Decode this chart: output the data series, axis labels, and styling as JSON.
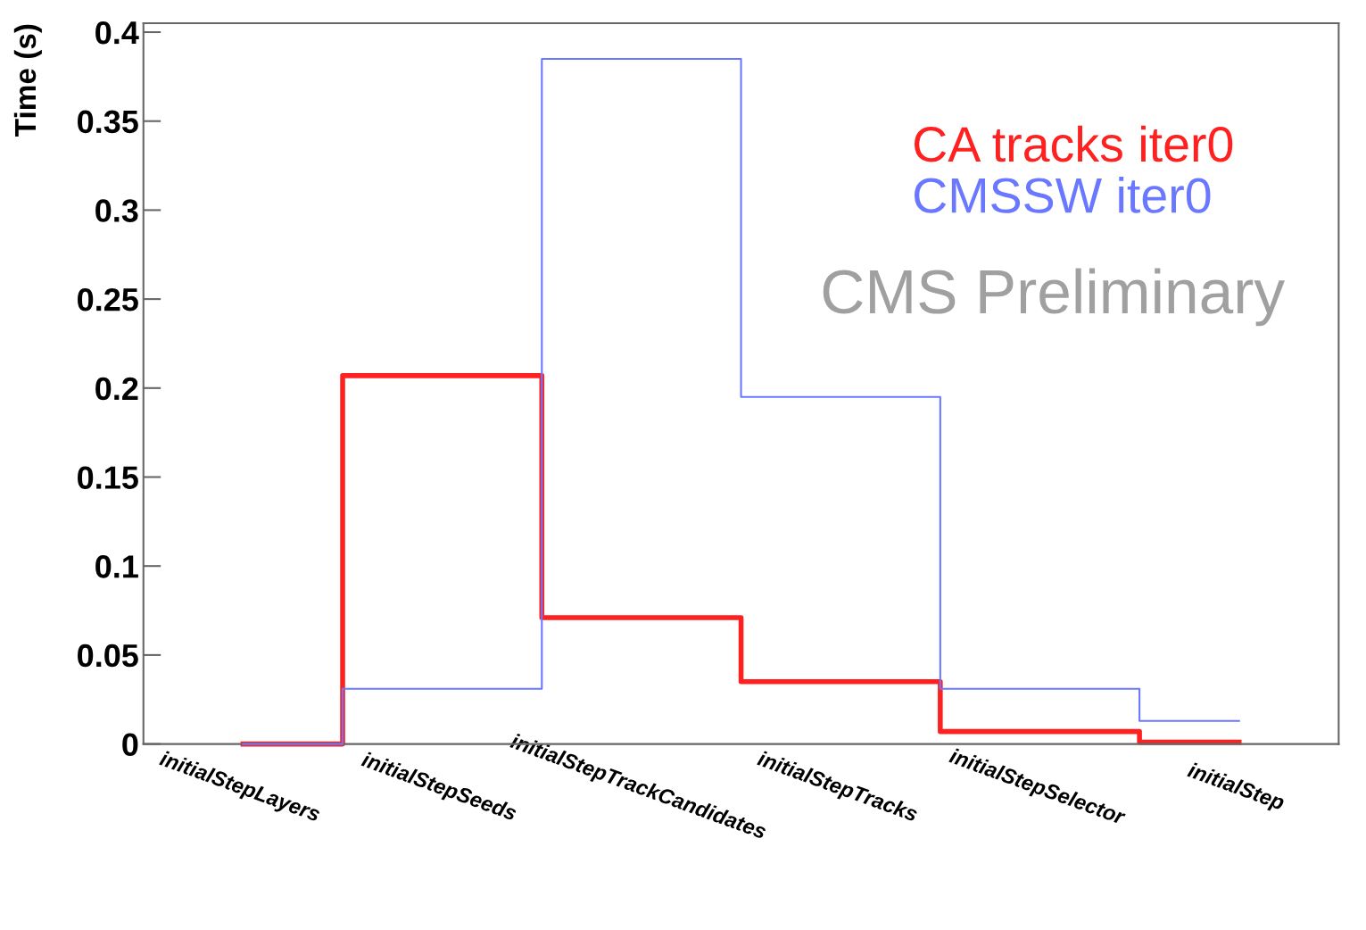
{
  "chart_data": {
    "type": "step",
    "ylabel": "Time (s)",
    "categories": [
      "initialStepLayers",
      "initialStepSeeds",
      "initialStepTrackCandidates",
      "initialStepTracks",
      "initialStepSelector",
      "initialStep"
    ],
    "series": [
      {
        "name": "CA tracks iter0",
        "color": "#ff2020",
        "values": [
          0,
          0.207,
          0.071,
          0.035,
          0.007,
          0.001
        ]
      },
      {
        "name": "CMSSW iter0",
        "color": "#6a78ff",
        "values": [
          0,
          0.031,
          0.385,
          0.195,
          0.031,
          0.013
        ]
      }
    ],
    "ylim": [
      0,
      0.405
    ],
    "yticks": [
      0,
      0.05,
      0.1,
      0.15,
      0.2,
      0.25,
      0.3,
      0.35,
      0.4
    ],
    "legend": "top right",
    "grid": false,
    "annotations": [
      "CMS Preliminary"
    ]
  }
}
